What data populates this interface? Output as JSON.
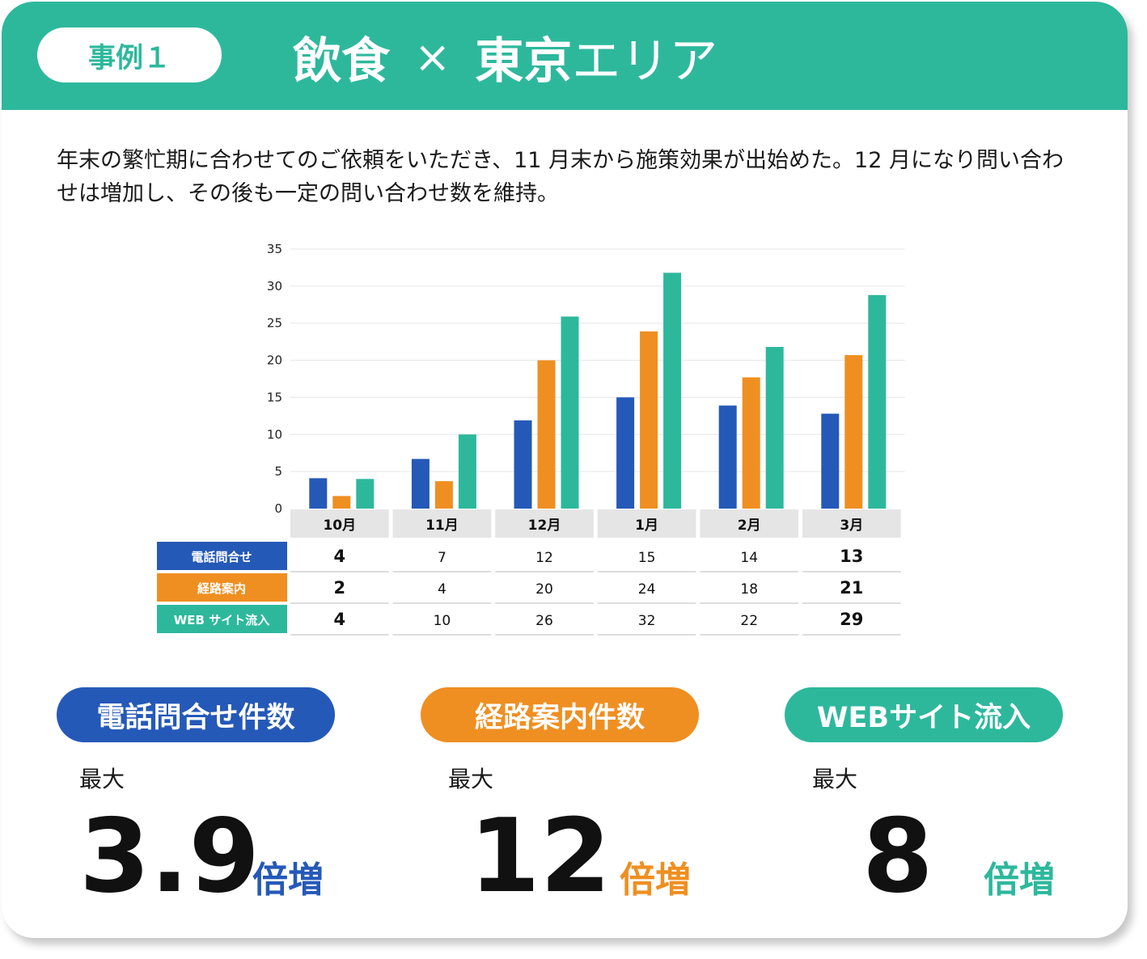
{
  "colors": {
    "accent": "#2db89c",
    "phone": "#2559b8",
    "route": "#ef8f21",
    "web": "#2db89c",
    "text": "#1a1a1a"
  },
  "header": {
    "case_label": "事例１",
    "title_part1": "飲食",
    "title_sep": "×",
    "title_part2": "東京",
    "title_part3": "エリア"
  },
  "description": "年末の繁忙期に合わせてのご依頼をいただき、11 月末から施策効果が出始めた。12 月になり問い合わせは増加し、その後も一定の問い合わせ数を維持。",
  "chart_data": {
    "type": "bar",
    "categories": [
      "10月",
      "11月",
      "12月",
      "1月",
      "2月",
      "3月"
    ],
    "ylim": [
      0,
      35
    ],
    "yticks": [
      0,
      5,
      10,
      15,
      20,
      25,
      30,
      35
    ],
    "grid": true,
    "series": [
      {
        "name": "電話問合せ",
        "color": "#2559b8",
        "values": [
          4,
          7,
          12,
          15,
          14,
          13
        ]
      },
      {
        "name": "経路案内",
        "color": "#ef8f21",
        "values": [
          2,
          4,
          20,
          24,
          18,
          21
        ]
      },
      {
        "name": "WEB サイト流入",
        "color": "#2db89c",
        "values": [
          4,
          10,
          26,
          32,
          22,
          29
        ]
      }
    ],
    "bar_values": [
      [
        4.1,
        6.7,
        11.9,
        15,
        13.9,
        12.8
      ],
      [
        1.7,
        3.7,
        20,
        23.9,
        17.7,
        20.7
      ],
      [
        4,
        10,
        25.9,
        31.8,
        21.8,
        28.8
      ]
    ],
    "bold_columns": [
      0,
      5
    ]
  },
  "stats": [
    {
      "label": "電話問合せ件数",
      "prefix": "最大",
      "value": "3.9",
      "unit": "倍増",
      "color": "#2559b8"
    },
    {
      "label": "経路案内件数",
      "prefix": "最大",
      "value": "12",
      "unit": "倍増",
      "color": "#ef8f21"
    },
    {
      "label": "WEBサイト流入",
      "prefix": "最大",
      "value": "8",
      "unit": "倍増",
      "color": "#2db89c"
    }
  ]
}
